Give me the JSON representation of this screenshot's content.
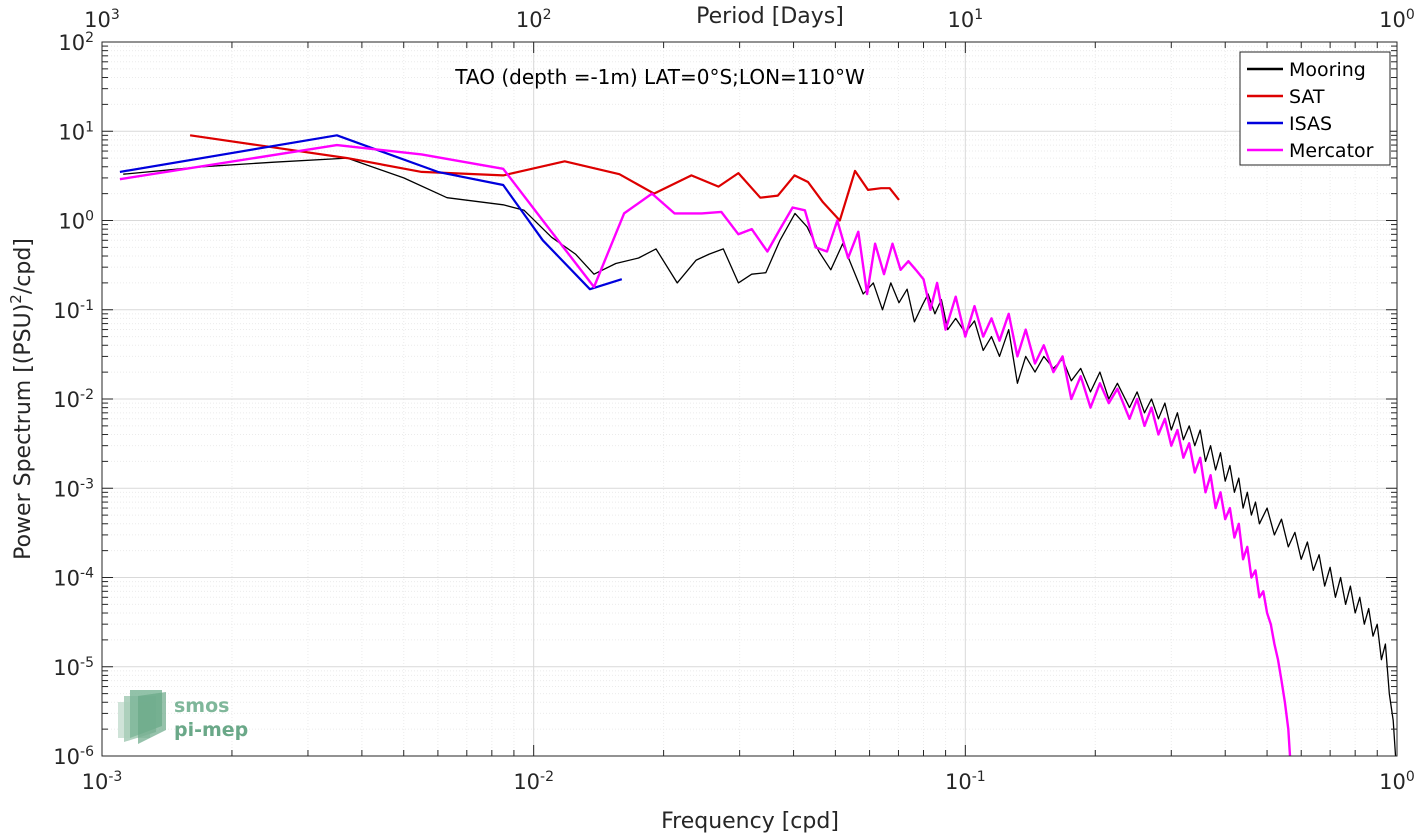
{
  "chart_data": {
    "type": "line",
    "title": "TAO (depth =-1m) LAT=0°S;LON=110°W",
    "xlabel": "Frequency [cpd]",
    "ylabel_main": "Power Spectrum [(PSU)",
    "ylabel_sup": "2",
    "ylabel_tail": "/cpd]",
    "top_xlabel": "Period [Days]",
    "x_scale": "log",
    "y_scale": "log",
    "xlim": [
      0.001,
      1
    ],
    "ylim": [
      1e-06,
      100
    ],
    "grid": true,
    "legend_position": "top-right",
    "x_ticks": [
      {
        "value": 0.001,
        "base": "10",
        "exp": "-3"
      },
      {
        "value": 0.01,
        "base": "10",
        "exp": "-2"
      },
      {
        "value": 0.1,
        "base": "10",
        "exp": "-1"
      },
      {
        "value": 1,
        "base": "10",
        "exp": "0"
      }
    ],
    "top_ticks": [
      {
        "value": 0.001,
        "base": "10",
        "exp": "3"
      },
      {
        "value": 0.01,
        "base": "10",
        "exp": "2"
      },
      {
        "value": 0.1,
        "base": "10",
        "exp": "1"
      },
      {
        "value": 1,
        "base": "10",
        "exp": "0"
      }
    ],
    "y_ticks": [
      {
        "value": 100,
        "base": "10",
        "exp": "2"
      },
      {
        "value": 10,
        "base": "10",
        "exp": "1"
      },
      {
        "value": 1,
        "base": "10",
        "exp": "0"
      },
      {
        "value": 0.1,
        "base": "10",
        "exp": "-1"
      },
      {
        "value": 0.01,
        "base": "10",
        "exp": "-2"
      },
      {
        "value": 0.001,
        "base": "10",
        "exp": "-3"
      },
      {
        "value": 0.0001,
        "base": "10",
        "exp": "-4"
      },
      {
        "value": 1e-05,
        "base": "10",
        "exp": "-5"
      },
      {
        "value": 1e-06,
        "base": "10",
        "exp": "-6"
      }
    ],
    "series": [
      {
        "name": "Mooring",
        "color": "#000000",
        "width": 1.3,
        "points": [
          [
            0.00112,
            3.3
          ],
          [
            0.0017,
            4.0
          ],
          [
            0.0025,
            4.5
          ],
          [
            0.0037,
            5.0
          ],
          [
            0.005,
            3.0
          ],
          [
            0.0063,
            1.8
          ],
          [
            0.0085,
            1.5
          ],
          [
            0.0095,
            1.3
          ],
          [
            0.011,
            0.65
          ],
          [
            0.0125,
            0.42
          ],
          [
            0.0138,
            0.25
          ],
          [
            0.0155,
            0.33
          ],
          [
            0.0175,
            0.38
          ],
          [
            0.0192,
            0.48
          ],
          [
            0.0215,
            0.2
          ],
          [
            0.0238,
            0.36
          ],
          [
            0.0255,
            0.42
          ],
          [
            0.0275,
            0.48
          ],
          [
            0.0298,
            0.2
          ],
          [
            0.032,
            0.25
          ],
          [
            0.0345,
            0.26
          ],
          [
            0.0372,
            0.6
          ],
          [
            0.0403,
            1.2
          ],
          [
            0.043,
            0.85
          ],
          [
            0.0458,
            0.45
          ],
          [
            0.0488,
            0.28
          ],
          [
            0.052,
            0.55
          ],
          [
            0.055,
            0.28
          ],
          [
            0.058,
            0.15
          ],
          [
            0.0612,
            0.2
          ],
          [
            0.0643,
            0.1
          ],
          [
            0.0672,
            0.2
          ],
          [
            0.0702,
            0.12
          ],
          [
            0.0733,
            0.17
          ],
          [
            0.0762,
            0.073
          ],
          [
            0.0793,
            0.11
          ],
          [
            0.082,
            0.15
          ],
          [
            0.085,
            0.09
          ],
          [
            0.088,
            0.13
          ],
          [
            0.091,
            0.06
          ],
          [
            0.095,
            0.08
          ],
          [
            0.1,
            0.055
          ],
          [
            0.105,
            0.075
          ],
          [
            0.11,
            0.035
          ],
          [
            0.115,
            0.05
          ],
          [
            0.12,
            0.03
          ],
          [
            0.126,
            0.06
          ],
          [
            0.132,
            0.015
          ],
          [
            0.138,
            0.03
          ],
          [
            0.145,
            0.02
          ],
          [
            0.152,
            0.03
          ],
          [
            0.16,
            0.022
          ],
          [
            0.168,
            0.028
          ],
          [
            0.176,
            0.016
          ],
          [
            0.185,
            0.022
          ],
          [
            0.195,
            0.012
          ],
          [
            0.205,
            0.02
          ],
          [
            0.215,
            0.01
          ],
          [
            0.225,
            0.015
          ],
          [
            0.24,
            0.008
          ],
          [
            0.25,
            0.012
          ],
          [
            0.26,
            0.007
          ],
          [
            0.27,
            0.01
          ],
          [
            0.28,
            0.006
          ],
          [
            0.29,
            0.009
          ],
          [
            0.3,
            0.0045
          ],
          [
            0.31,
            0.007
          ],
          [
            0.32,
            0.0035
          ],
          [
            0.33,
            0.005
          ],
          [
            0.34,
            0.003
          ],
          [
            0.35,
            0.0045
          ],
          [
            0.36,
            0.002
          ],
          [
            0.37,
            0.003
          ],
          [
            0.38,
            0.0016
          ],
          [
            0.39,
            0.0025
          ],
          [
            0.4,
            0.0012
          ],
          [
            0.41,
            0.0018
          ],
          [
            0.42,
            0.0009
          ],
          [
            0.43,
            0.0013
          ],
          [
            0.44,
            0.0006
          ],
          [
            0.45,
            0.0009
          ],
          [
            0.46,
            0.0005
          ],
          [
            0.47,
            0.0007
          ],
          [
            0.48,
            0.0004
          ],
          [
            0.5,
            0.0006
          ],
          [
            0.52,
            0.0003
          ],
          [
            0.54,
            0.00045
          ],
          [
            0.56,
            0.00022
          ],
          [
            0.58,
            0.00032
          ],
          [
            0.6,
            0.00016
          ],
          [
            0.62,
            0.00025
          ],
          [
            0.64,
            0.00012
          ],
          [
            0.66,
            0.00018
          ],
          [
            0.68,
            8e-05
          ],
          [
            0.7,
            0.00013
          ],
          [
            0.72,
            6e-05
          ],
          [
            0.74,
            0.0001
          ],
          [
            0.76,
            5e-05
          ],
          [
            0.78,
            8e-05
          ],
          [
            0.8,
            4e-05
          ],
          [
            0.82,
            6e-05
          ],
          [
            0.84,
            3e-05
          ],
          [
            0.86,
            4.5e-05
          ],
          [
            0.88,
            2.2e-05
          ],
          [
            0.9,
            3e-05
          ],
          [
            0.92,
            1.2e-05
          ],
          [
            0.94,
            1.8e-05
          ],
          [
            0.96,
            5e-06
          ],
          [
            0.98,
            2.5e-06
          ],
          [
            0.995,
            8e-07
          ]
        ]
      },
      {
        "name": "SAT",
        "color": "#dd0000",
        "width": 2.2,
        "points": [
          [
            0.0016,
            9.0
          ],
          [
            0.0037,
            5.0
          ],
          [
            0.0055,
            3.5
          ],
          [
            0.0085,
            3.2
          ],
          [
            0.0118,
            4.6
          ],
          [
            0.0158,
            3.3
          ],
          [
            0.019,
            2.0
          ],
          [
            0.0232,
            3.2
          ],
          [
            0.0268,
            2.4
          ],
          [
            0.0298,
            3.4
          ],
          [
            0.0335,
            1.8
          ],
          [
            0.0368,
            1.9
          ],
          [
            0.0402,
            3.2
          ],
          [
            0.0432,
            2.7
          ],
          [
            0.0468,
            1.6
          ],
          [
            0.0512,
            1.0
          ],
          [
            0.0555,
            3.6
          ],
          [
            0.0595,
            2.2
          ],
          [
            0.0638,
            2.3
          ],
          [
            0.0668,
            2.3
          ],
          [
            0.0702,
            1.7
          ]
        ]
      },
      {
        "name": "ISAS",
        "color": "#0000dd",
        "width": 2.2,
        "points": [
          [
            0.0011,
            3.5
          ],
          [
            0.0035,
            9.0
          ],
          [
            0.006,
            3.5
          ],
          [
            0.0085,
            2.5
          ],
          [
            0.0105,
            0.6
          ],
          [
            0.0135,
            0.17
          ],
          [
            0.016,
            0.22
          ]
        ]
      },
      {
        "name": "Mercator",
        "color": "#ff00ff",
        "width": 2.4,
        "points": [
          [
            0.0011,
            2.9
          ],
          [
            0.0035,
            7.0
          ],
          [
            0.0055,
            5.5
          ],
          [
            0.0085,
            3.8
          ],
          [
            0.0105,
            1.0
          ],
          [
            0.0138,
            0.18
          ],
          [
            0.0162,
            1.2
          ],
          [
            0.0188,
            2.0
          ],
          [
            0.0212,
            1.2
          ],
          [
            0.0245,
            1.2
          ],
          [
            0.0272,
            1.25
          ],
          [
            0.0298,
            0.7
          ],
          [
            0.032,
            0.8
          ],
          [
            0.0348,
            0.45
          ],
          [
            0.0372,
            0.8
          ],
          [
            0.0398,
            1.4
          ],
          [
            0.0425,
            1.3
          ],
          [
            0.045,
            0.5
          ],
          [
            0.0478,
            0.45
          ],
          [
            0.0505,
            1.0
          ],
          [
            0.0535,
            0.38
          ],
          [
            0.0565,
            0.75
          ],
          [
            0.0592,
            0.15
          ],
          [
            0.0618,
            0.55
          ],
          [
            0.0648,
            0.25
          ],
          [
            0.0678,
            0.55
          ],
          [
            0.0708,
            0.28
          ],
          [
            0.0738,
            0.35
          ],
          [
            0.0768,
            0.28
          ],
          [
            0.08,
            0.22
          ],
          [
            0.083,
            0.1
          ],
          [
            0.086,
            0.2
          ],
          [
            0.09,
            0.06
          ],
          [
            0.095,
            0.14
          ],
          [
            0.1,
            0.05
          ],
          [
            0.105,
            0.11
          ],
          [
            0.11,
            0.05
          ],
          [
            0.115,
            0.08
          ],
          [
            0.12,
            0.045
          ],
          [
            0.126,
            0.09
          ],
          [
            0.132,
            0.03
          ],
          [
            0.138,
            0.06
          ],
          [
            0.145,
            0.025
          ],
          [
            0.152,
            0.04
          ],
          [
            0.16,
            0.02
          ],
          [
            0.168,
            0.03
          ],
          [
            0.176,
            0.01
          ],
          [
            0.185,
            0.018
          ],
          [
            0.195,
            0.008
          ],
          [
            0.205,
            0.015
          ],
          [
            0.215,
            0.009
          ],
          [
            0.225,
            0.013
          ],
          [
            0.24,
            0.006
          ],
          [
            0.25,
            0.01
          ],
          [
            0.26,
            0.005
          ],
          [
            0.27,
            0.008
          ],
          [
            0.28,
            0.004
          ],
          [
            0.29,
            0.006
          ],
          [
            0.3,
            0.003
          ],
          [
            0.31,
            0.0045
          ],
          [
            0.32,
            0.0022
          ],
          [
            0.33,
            0.0032
          ],
          [
            0.34,
            0.0015
          ],
          [
            0.35,
            0.0022
          ],
          [
            0.36,
            0.0009
          ],
          [
            0.37,
            0.0014
          ],
          [
            0.38,
            0.0006
          ],
          [
            0.39,
            0.0009
          ],
          [
            0.4,
            0.00045
          ],
          [
            0.41,
            0.0006
          ],
          [
            0.42,
            0.00028
          ],
          [
            0.43,
            0.0004
          ],
          [
            0.44,
            0.00016
          ],
          [
            0.45,
            0.00022
          ],
          [
            0.46,
            0.0001
          ],
          [
            0.47,
            0.00012
          ],
          [
            0.48,
            6e-05
          ],
          [
            0.49,
            7e-05
          ],
          [
            0.5,
            4e-05
          ],
          [
            0.51,
            3e-05
          ],
          [
            0.52,
            1.8e-05
          ],
          [
            0.53,
            1.2e-05
          ],
          [
            0.54,
            7e-06
          ],
          [
            0.55,
            4e-06
          ],
          [
            0.56,
            2e-06
          ],
          [
            0.565,
            1e-06
          ]
        ]
      }
    ]
  }
}
